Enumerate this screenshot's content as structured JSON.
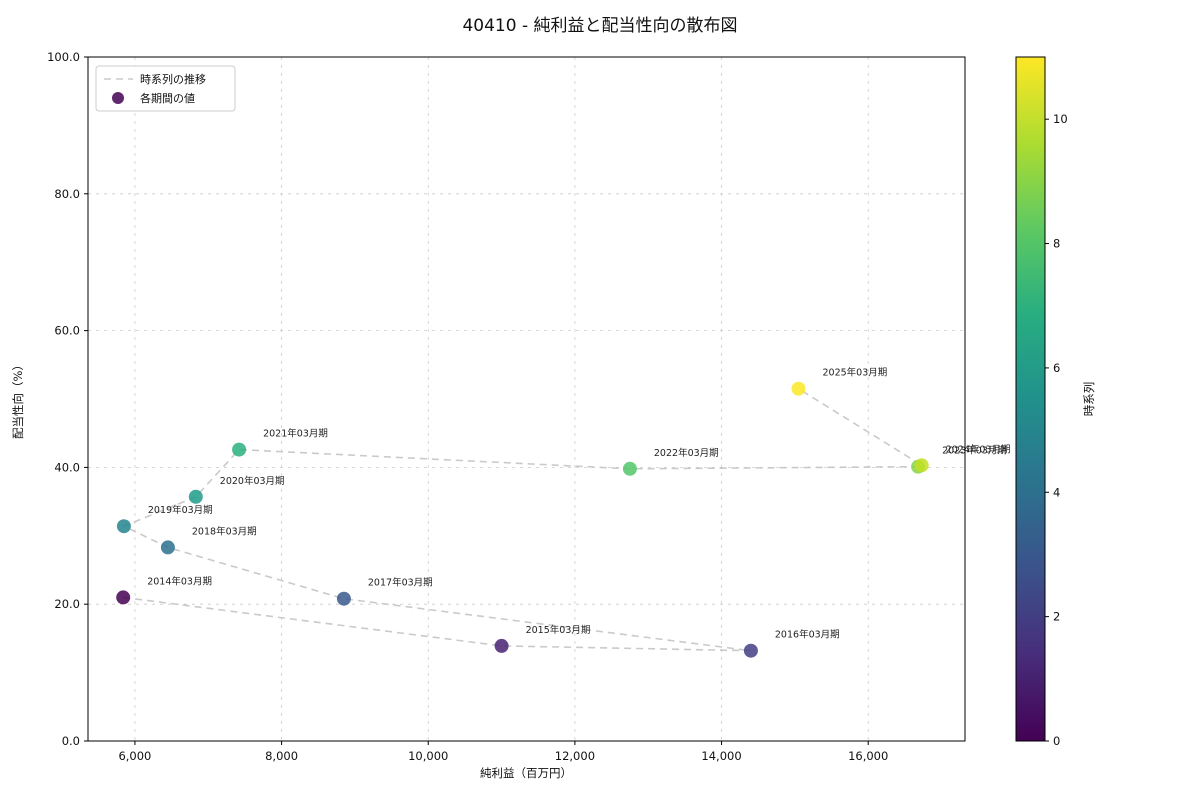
{
  "chart_data": {
    "type": "scatter",
    "title": "40410 - 純利益と配当性向の散布図",
    "xlabel": "純利益（百万円）",
    "ylabel": "配当性向（%）",
    "xlim": [
      5360,
      17320
    ],
    "ylim": [
      0,
      100
    ],
    "x_ticks": [
      6000,
      8000,
      10000,
      12000,
      14000,
      16000
    ],
    "x_tick_labels": [
      "6,000",
      "8,000",
      "10,000",
      "12,000",
      "14,000",
      "16,000"
    ],
    "y_ticks": [
      0,
      20,
      40,
      60,
      80,
      100
    ],
    "y_tick_labels": [
      "0.0",
      "20.0",
      "40.0",
      "60.0",
      "80.0",
      "100.0"
    ],
    "grid": true,
    "annotation_offset": [
      24,
      -13
    ],
    "legend": {
      "line_label": "時系列の推移",
      "point_label": "各期間の値"
    },
    "colorbar": {
      "label": "時系列",
      "min": 0,
      "max": 11,
      "ticks": [
        0,
        2,
        4,
        6,
        8,
        10
      ],
      "gradient": [
        "#440154",
        "#472d7b",
        "#3b528b",
        "#2c728e",
        "#21918c",
        "#28ae80",
        "#5ec962",
        "#addc30",
        "#fde725"
      ]
    },
    "points": [
      {
        "label": "2014年03月期",
        "x": 5840,
        "y": 21.0,
        "t": 0,
        "color": "#440154"
      },
      {
        "label": "2015年03月期",
        "x": 11000,
        "y": 13.9,
        "t": 1,
        "color": "#482173"
      },
      {
        "label": "2016年03月期",
        "x": 14400,
        "y": 13.2,
        "t": 2,
        "color": "#433e85"
      },
      {
        "label": "2017年03月期",
        "x": 8850,
        "y": 20.8,
        "t": 3,
        "color": "#38598c"
      },
      {
        "label": "2018年03月期",
        "x": 6450,
        "y": 28.3,
        "t": 4,
        "color": "#2d708e"
      },
      {
        "label": "2019年03月期",
        "x": 5850,
        "y": 31.4,
        "t": 5,
        "color": "#25858e"
      },
      {
        "label": "2020年03月期",
        "x": 6830,
        "y": 35.7,
        "t": 6,
        "color": "#1e9b8a"
      },
      {
        "label": "2021年03月期",
        "x": 7420,
        "y": 42.6,
        "t": 7,
        "color": "#2ab07f"
      },
      {
        "label": "2022年03月期",
        "x": 12750,
        "y": 39.8,
        "t": 8,
        "color": "#52c569"
      },
      {
        "label": "2023年03月期",
        "x": 16680,
        "y": 40.1,
        "t": 9,
        "color": "#86d549"
      },
      {
        "label": "2024年03月期",
        "x": 16730,
        "y": 40.3,
        "t": 10,
        "color": "#c2df23"
      },
      {
        "label": "2025年03月期",
        "x": 15050,
        "y": 51.5,
        "t": 11,
        "color": "#fde725"
      }
    ]
  }
}
